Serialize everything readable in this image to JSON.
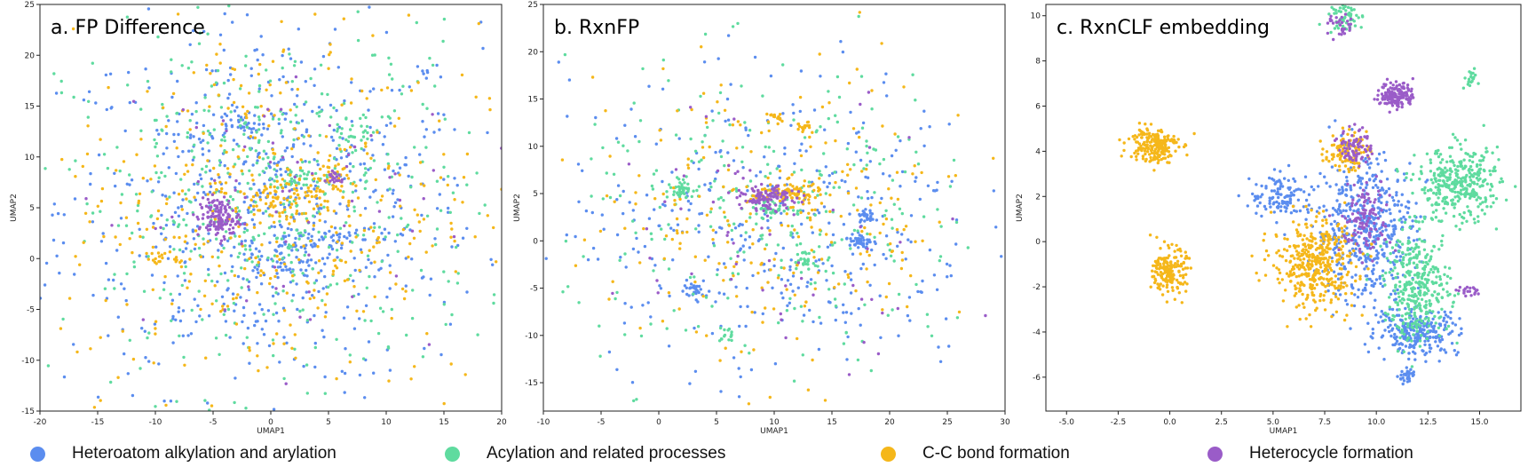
{
  "colors": {
    "heteroatom": "#5b8def",
    "acylation": "#5fdb9f",
    "cc_bond": "#f5b71a",
    "heterocycle": "#9a5cc8"
  },
  "legend": [
    {
      "label": "Heteroatom alkylation and arylation",
      "color": "#5b8def",
      "icon": "circle-marker-icon"
    },
    {
      "label": "Acylation and related processes",
      "color": "#5fdb9f",
      "icon": "circle-marker-icon"
    },
    {
      "label": "C-C bond formation",
      "color": "#f5b71a",
      "icon": "circle-marker-icon"
    },
    {
      "label": "Heterocycle formation",
      "color": "#9a5cc8",
      "icon": "circle-marker-icon"
    }
  ],
  "chart_data": [
    {
      "type": "scatter",
      "title": "a. FP Difference",
      "xlabel": "UMAP1",
      "ylabel": "UMAP2",
      "xlim": [
        -20,
        20
      ],
      "ylim": [
        -15,
        25
      ],
      "xticks": [
        "-20",
        "-15",
        "-10",
        "-5",
        "0",
        "5",
        "10",
        "15",
        "20"
      ],
      "yticks": [
        "-15",
        "-10",
        "-5",
        "0",
        "5",
        "10",
        "15",
        "20",
        "25"
      ],
      "grid": false,
      "series": [
        {
          "name": "Heteroatom alkylation and arylation",
          "colorKey": "heteroatom",
          "clusters": [
            {
              "x": 0,
              "y": 5,
              "sx": 9,
              "sy": 9,
              "n": 700
            },
            {
              "x": 1,
              "y": 0,
              "sx": 2,
              "sy": 1.2,
              "n": 60
            },
            {
              "x": -3,
              "y": 13,
              "sx": 1,
              "sy": 0.6,
              "n": 25
            },
            {
              "x": 4,
              "y": 2,
              "sx": 1.5,
              "sy": 0.5,
              "n": 40
            }
          ]
        },
        {
          "name": "Acylation and related processes",
          "colorKey": "acylation",
          "clusters": [
            {
              "x": 0,
              "y": 5,
              "sx": 9,
              "sy": 9,
              "n": 550
            },
            {
              "x": 7,
              "y": 12,
              "sx": 1,
              "sy": 0.7,
              "n": 25
            },
            {
              "x": 2,
              "y": 8,
              "sx": 1.5,
              "sy": 0.5,
              "n": 35
            }
          ]
        },
        {
          "name": "C-C bond formation",
          "colorKey": "cc_bond",
          "clusters": [
            {
              "x": 0,
              "y": 5,
              "sx": 9,
              "sy": 9,
              "n": 450
            },
            {
              "x": 1,
              "y": 6,
              "sx": 2.5,
              "sy": 1.2,
              "n": 80
            },
            {
              "x": 5,
              "y": 8,
              "sx": 1,
              "sy": 0.6,
              "n": 25
            },
            {
              "x": -9,
              "y": 0,
              "sx": 1,
              "sy": 0.4,
              "n": 20
            }
          ]
        },
        {
          "name": "Heterocycle formation",
          "colorKey": "heterocycle",
          "clusters": [
            {
              "x": -4.5,
              "y": 4,
              "sx": 0.9,
              "sy": 1.0,
              "n": 130
            },
            {
              "x": 0,
              "y": 5,
              "sx": 8,
              "sy": 8,
              "n": 70
            },
            {
              "x": 5.5,
              "y": 8,
              "sx": 0.4,
              "sy": 0.4,
              "n": 20
            }
          ]
        }
      ]
    },
    {
      "type": "scatter",
      "title": "b. RxnFP",
      "xlabel": "UMAP1",
      "ylabel": "UMAP2",
      "xlim": [
        -10,
        30
      ],
      "ylim": [
        -18,
        25
      ],
      "xticks": [
        "-10",
        "-5",
        "0",
        "5",
        "10",
        "15",
        "20",
        "25",
        "30"
      ],
      "yticks": [
        "-15",
        "-10",
        "-5",
        "0",
        "5",
        "10",
        "15",
        "20",
        "25"
      ],
      "grid": false,
      "series": [
        {
          "name": "Heteroatom alkylation and arylation",
          "colorKey": "heteroatom",
          "clusters": [
            {
              "x": 10,
              "y": 2,
              "sx": 9,
              "sy": 8,
              "n": 380
            },
            {
              "x": 17.5,
              "y": 0,
              "sx": 0.5,
              "sy": 0.5,
              "n": 40
            },
            {
              "x": 18,
              "y": 2.5,
              "sx": 0.4,
              "sy": 0.4,
              "n": 25
            },
            {
              "x": 3,
              "y": -5,
              "sx": 0.4,
              "sy": 0.4,
              "n": 25
            }
          ]
        },
        {
          "name": "Acylation and related processes",
          "colorKey": "acylation",
          "clusters": [
            {
              "x": 10,
              "y": 2,
              "sx": 9,
              "sy": 8,
              "n": 300
            },
            {
              "x": 2,
              "y": 5.5,
              "sx": 0.5,
              "sy": 0.4,
              "n": 40
            },
            {
              "x": 12.5,
              "y": -2,
              "sx": 0.4,
              "sy": 0.4,
              "n": 25
            },
            {
              "x": 10,
              "y": 3.5,
              "sx": 1,
              "sy": 0.6,
              "n": 40
            },
            {
              "x": 6,
              "y": -10,
              "sx": 0.4,
              "sy": 0.4,
              "n": 15
            }
          ]
        },
        {
          "name": "C-C bond formation",
          "colorKey": "cc_bond",
          "clusters": [
            {
              "x": 10,
              "y": 2,
              "sx": 9,
              "sy": 8,
              "n": 260
            },
            {
              "x": 11,
              "y": 5,
              "sx": 1.5,
              "sy": 0.6,
              "n": 90
            },
            {
              "x": 10,
              "y": 13,
              "sx": 0.3,
              "sy": 0.3,
              "n": 15
            },
            {
              "x": 12.5,
              "y": 12,
              "sx": 0.3,
              "sy": 0.3,
              "n": 15
            }
          ]
        },
        {
          "name": "Heterocycle formation",
          "colorKey": "heterocycle",
          "clusters": [
            {
              "x": 9.5,
              "y": 4.5,
              "sx": 1.2,
              "sy": 0.6,
              "n": 110
            },
            {
              "x": 10,
              "y": 2,
              "sx": 8,
              "sy": 7,
              "n": 60
            }
          ]
        }
      ]
    },
    {
      "type": "scatter",
      "title": "c. RxnCLF embedding",
      "xlabel": "UMAP1",
      "ylabel": "UMAP2",
      "xlim": [
        -6,
        17
      ],
      "ylim": [
        -7.5,
        10.5
      ],
      "xticks": [
        "-5.0",
        "-2.5",
        "0.0",
        "2.5",
        "5.0",
        "7.5",
        "10.0",
        "12.5",
        "15.0"
      ],
      "yticks": [
        "-6",
        "-4",
        "-2",
        "0",
        "2",
        "4",
        "6",
        "8",
        "10"
      ],
      "grid": false,
      "series": [
        {
          "name": "Heteroatom alkylation and arylation",
          "colorKey": "heteroatom",
          "clusters": [
            {
              "x": 9.5,
              "y": 0.5,
              "sx": 1.2,
              "sy": 1.6,
              "n": 500
            },
            {
              "x": 12,
              "y": -4,
              "sx": 1.0,
              "sy": 0.5,
              "n": 250
            },
            {
              "x": 5.5,
              "y": 2,
              "sx": 0.8,
              "sy": 0.5,
              "n": 120
            },
            {
              "x": 11.5,
              "y": -6,
              "sx": 0.2,
              "sy": 0.2,
              "n": 30
            }
          ]
        },
        {
          "name": "Acylation and related processes",
          "colorKey": "acylation",
          "clusters": [
            {
              "x": 14,
              "y": 2.5,
              "sx": 1.0,
              "sy": 0.8,
              "n": 350
            },
            {
              "x": 12,
              "y": -2,
              "sx": 0.8,
              "sy": 1.2,
              "n": 350
            },
            {
              "x": 8.5,
              "y": 10,
              "sx": 0.4,
              "sy": 0.4,
              "n": 60
            },
            {
              "x": 14.5,
              "y": 7.2,
              "sx": 0.2,
              "sy": 0.2,
              "n": 20
            }
          ]
        },
        {
          "name": "C-C bond formation",
          "colorKey": "cc_bond",
          "clusters": [
            {
              "x": -0.8,
              "y": 4.3,
              "sx": 0.6,
              "sy": 0.4,
              "n": 200
            },
            {
              "x": 0,
              "y": -1.3,
              "sx": 0.4,
              "sy": 0.5,
              "n": 180
            },
            {
              "x": 7,
              "y": -1,
              "sx": 1.0,
              "sy": 1.0,
              "n": 400
            },
            {
              "x": 8.5,
              "y": 4,
              "sx": 0.5,
              "sy": 0.4,
              "n": 100
            }
          ]
        },
        {
          "name": "Heterocycle formation",
          "colorKey": "heterocycle",
          "clusters": [
            {
              "x": 11,
              "y": 6.5,
              "sx": 0.4,
              "sy": 0.3,
              "n": 150
            },
            {
              "x": 9,
              "y": 4.2,
              "sx": 0.4,
              "sy": 0.4,
              "n": 80
            },
            {
              "x": 9.5,
              "y": 1,
              "sx": 0.6,
              "sy": 0.8,
              "n": 120
            },
            {
              "x": 8.3,
              "y": 9.5,
              "sx": 0.3,
              "sy": 0.3,
              "n": 30
            },
            {
              "x": 14.5,
              "y": -2.2,
              "sx": 0.4,
              "sy": 0.1,
              "n": 20
            }
          ]
        }
      ]
    }
  ]
}
